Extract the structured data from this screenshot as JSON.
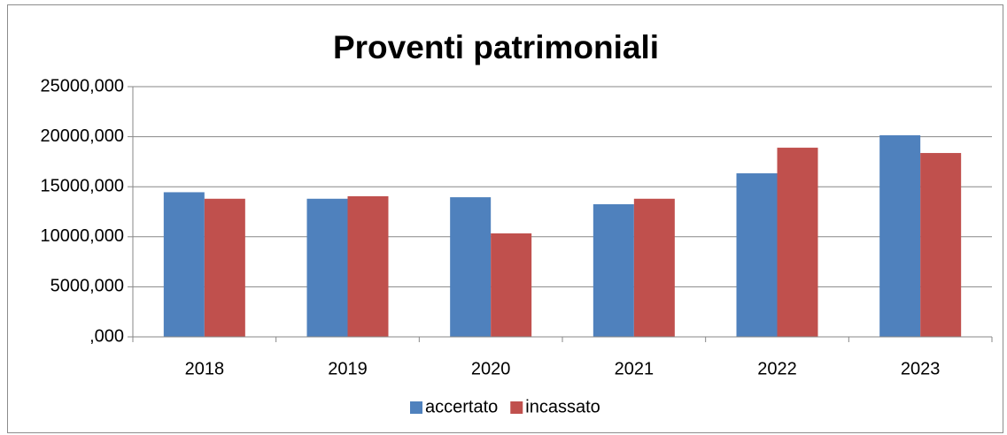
{
  "chart_data": {
    "type": "bar",
    "title": "Proventi patrimoniali",
    "categories": [
      "2018",
      "2019",
      "2020",
      "2021",
      "2022",
      "2023"
    ],
    "series": [
      {
        "name": "accertato",
        "color": "#4f81bd",
        "values": [
          14450,
          13800,
          13950,
          13250,
          16340,
          20140
        ]
      },
      {
        "name": "incassato",
        "color": "#c0504d",
        "values": [
          13800,
          14050,
          10340,
          13800,
          18900,
          18370
        ]
      }
    ],
    "ylim": [
      0,
      25000
    ],
    "yticks": [
      {
        "value": 0,
        "label": ",000"
      },
      {
        "value": 5000,
        "label": "5000,000"
      },
      {
        "value": 10000,
        "label": "10000,000"
      },
      {
        "value": 15000,
        "label": "15000,000"
      },
      {
        "value": 20000,
        "label": "20000,000"
      },
      {
        "value": 25000,
        "label": "25000,000"
      }
    ],
    "grid": true,
    "legend": "bottom"
  }
}
